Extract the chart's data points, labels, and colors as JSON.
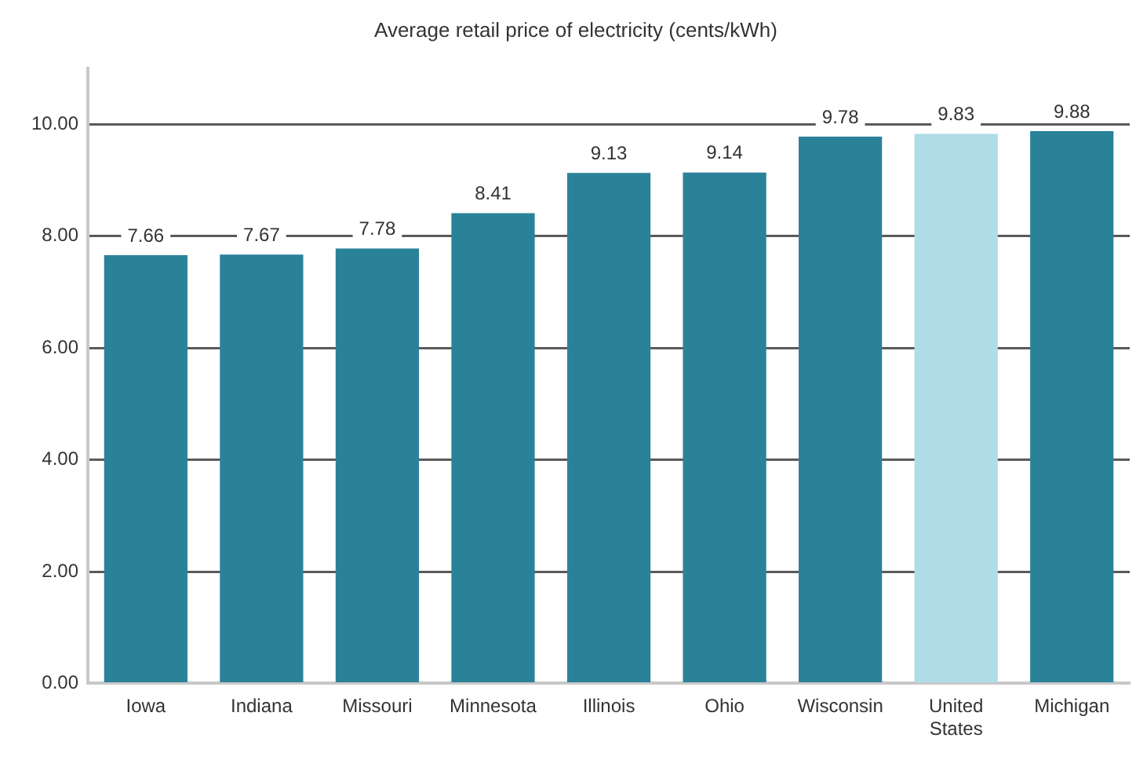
{
  "chart_data": {
    "type": "bar",
    "title": "Average retail price of electricity (cents/kWh)",
    "categories": [
      "Iowa",
      "Indiana",
      "Missouri",
      "Minnesota",
      "Illinois",
      "Ohio",
      "Wisconsin",
      "United States",
      "Michigan"
    ],
    "values": [
      7.66,
      7.67,
      7.78,
      8.41,
      9.13,
      9.14,
      9.78,
      9.83,
      9.88
    ],
    "colors": [
      "#2a8299",
      "#2a8299",
      "#2a8299",
      "#2a8299",
      "#2a8299",
      "#2a8299",
      "#2a8299",
      "#b0dce8",
      "#2a8299"
    ],
    "ylim": [
      0,
      11
    ],
    "yticks": [
      {
        "value": 0,
        "label": "0.00"
      },
      {
        "value": 2,
        "label": "2.00"
      },
      {
        "value": 4,
        "label": "4.00"
      },
      {
        "value": 6,
        "label": "6.00"
      },
      {
        "value": 8,
        "label": "8.00"
      },
      {
        "value": 10,
        "label": "10.00"
      }
    ],
    "grid": "y",
    "data_labels": true,
    "legend": false
  }
}
